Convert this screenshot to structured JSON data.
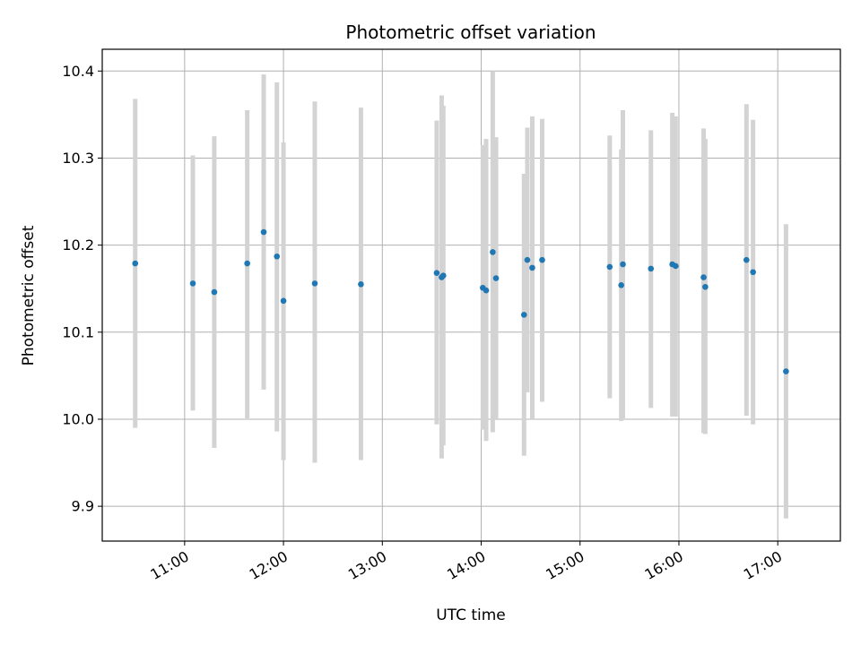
{
  "chart_data": {
    "type": "scatter",
    "title": "Photometric offset variation",
    "xlabel": "UTC time",
    "ylabel": "Photometric offset",
    "xlim": [
      "10:10",
      "17:38"
    ],
    "ylim": [
      9.86,
      10.425
    ],
    "grid": true,
    "x_ticks": [
      "11:00",
      "12:00",
      "13:00",
      "14:00",
      "15:00",
      "16:00",
      "17:00"
    ],
    "y_ticks": [
      "9.9",
      "10.0",
      "10.1",
      "10.2",
      "10.3",
      "10.4"
    ],
    "marker_color": "#1f77b4",
    "errorbar_color": "#d3d3d3",
    "points": [
      {
        "time": "10:30",
        "y": 10.179,
        "low": 9.99,
        "high": 10.368
      },
      {
        "time": "11:05",
        "y": 10.156,
        "low": 10.01,
        "high": 10.303
      },
      {
        "time": "11:18",
        "y": 10.146,
        "low": 9.967,
        "high": 10.325
      },
      {
        "time": "11:38",
        "y": 10.179,
        "low": 10.001,
        "high": 10.355
      },
      {
        "time": "11:48",
        "y": 10.215,
        "low": 10.034,
        "high": 10.396
      },
      {
        "time": "11:56",
        "y": 10.187,
        "low": 9.986,
        "high": 10.387
      },
      {
        "time": "12:00",
        "y": 10.136,
        "low": 9.953,
        "high": 10.318
      },
      {
        "time": "12:19",
        "y": 10.156,
        "low": 9.95,
        "high": 10.365
      },
      {
        "time": "12:47",
        "y": 10.155,
        "low": 9.953,
        "high": 10.358
      },
      {
        "time": "13:33",
        "y": 10.168,
        "low": 9.994,
        "high": 10.343
      },
      {
        "time": "13:36",
        "y": 10.163,
        "low": 9.955,
        "high": 10.372
      },
      {
        "time": "13:37",
        "y": 10.165,
        "low": 9.97,
        "high": 10.36
      },
      {
        "time": "14:01",
        "y": 10.151,
        "low": 9.988,
        "high": 10.315
      },
      {
        "time": "14:03",
        "y": 10.148,
        "low": 9.975,
        "high": 10.322
      },
      {
        "time": "14:07",
        "y": 10.192,
        "low": 9.985,
        "high": 10.4
      },
      {
        "time": "14:09",
        "y": 10.162,
        "low": 10.0,
        "high": 10.324
      },
      {
        "time": "14:26",
        "y": 10.12,
        "low": 9.958,
        "high": 10.282
      },
      {
        "time": "14:28",
        "y": 10.183,
        "low": 10.031,
        "high": 10.335
      },
      {
        "time": "14:31",
        "y": 10.174,
        "low": 10.0,
        "high": 10.348
      },
      {
        "time": "14:37",
        "y": 10.183,
        "low": 10.02,
        "high": 10.345
      },
      {
        "time": "15:18",
        "y": 10.175,
        "low": 10.024,
        "high": 10.326
      },
      {
        "time": "15:25",
        "y": 10.154,
        "low": 9.998,
        "high": 10.31
      },
      {
        "time": "15:26",
        "y": 10.178,
        "low": 10.001,
        "high": 10.355
      },
      {
        "time": "15:43",
        "y": 10.173,
        "low": 10.013,
        "high": 10.332
      },
      {
        "time": "15:56",
        "y": 10.178,
        "low": 10.003,
        "high": 10.352
      },
      {
        "time": "15:58",
        "y": 10.176,
        "low": 10.003,
        "high": 10.348
      },
      {
        "time": "16:15",
        "y": 10.163,
        "low": 9.984,
        "high": 10.334
      },
      {
        "time": "16:16",
        "y": 10.152,
        "low": 9.983,
        "high": 10.322
      },
      {
        "time": "16:41",
        "y": 10.183,
        "low": 10.004,
        "high": 10.362
      },
      {
        "time": "16:45",
        "y": 10.169,
        "low": 9.994,
        "high": 10.344
      },
      {
        "time": "17:05",
        "y": 10.055,
        "low": 9.886,
        "high": 10.224
      }
    ]
  }
}
